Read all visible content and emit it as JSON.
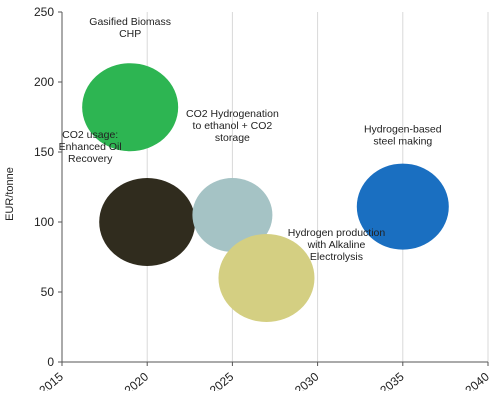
{
  "chart_data": {
    "type": "scatter",
    "title": "",
    "xlabel": "",
    "ylabel": "EUR/tonne",
    "xlim": [
      2015,
      2040
    ],
    "ylim": [
      0,
      250
    ],
    "x_ticks": [
      "2015",
      "2020",
      "2025",
      "2030",
      "2035",
      "2040"
    ],
    "y_ticks": [
      "0",
      "50",
      "100",
      "150",
      "200",
      "250"
    ],
    "grid": "vertical",
    "series": [
      {
        "label_lines": [
          "Gasified Biomass",
          "CHP"
        ],
        "x": 2019,
        "y": 182,
        "color": "#2db552"
      },
      {
        "label_lines": [
          "CO2 usage:",
          "Enhanced Oil",
          "Recovery"
        ],
        "x": 2020,
        "y": 100,
        "color": "#302c1e"
      },
      {
        "label_lines": [
          "CO2 Hydrogenation",
          "to ethanol + CO2",
          "storage"
        ],
        "x": 2025,
        "y": 105,
        "color": "#a5c3c5"
      },
      {
        "label_lines": [
          "Hydrogen production",
          "with Alkaline",
          "Electrolysis"
        ],
        "x": 2027,
        "y": 60,
        "color": "#d4cf82"
      },
      {
        "label_lines": [
          "Hydrogen-based",
          "steel making"
        ],
        "x": 2035,
        "y": 111,
        "color": "#1a6fc1"
      }
    ]
  }
}
